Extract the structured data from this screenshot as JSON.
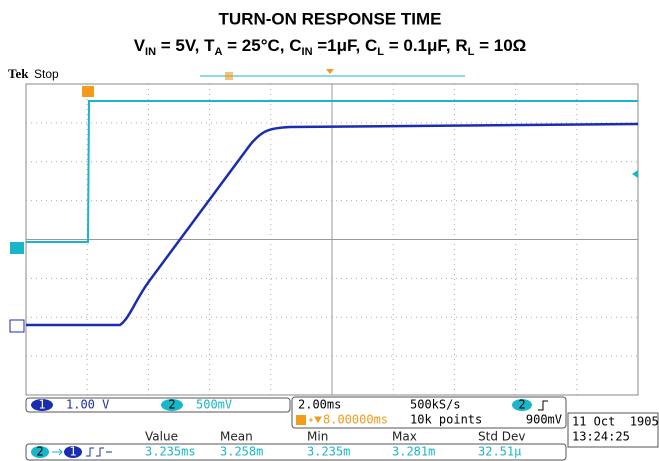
{
  "header": {
    "title": "TURN-ON RESPONSE TIME",
    "subtitle": [
      "V",
      "IN",
      " = 5V, T",
      "A",
      " = 25°C, C",
      "IN",
      " =1μF, C",
      "L",
      " = 0.1μF, R",
      "L",
      " = 10Ω"
    ]
  },
  "scope": {
    "brand": "Tek",
    "status": "Stop"
  },
  "channels": [
    {
      "id": "1",
      "scale": "1.00 V"
    },
    {
      "id": "2",
      "scale": "500mV"
    }
  ],
  "timebase": {
    "scale": "2.00ms",
    "rate": "500kS/s",
    "delay": "8.00000ms",
    "record": "10k points",
    "trigger_source": "2",
    "trigger_level": "900mV"
  },
  "datetime": {
    "date": "11 Oct  1905",
    "time": "13:24:25"
  },
  "measurement": {
    "from": "2",
    "to": "1",
    "headers": [
      "Value",
      "Mean",
      "Min",
      "Max",
      "Std Dev"
    ],
    "values": [
      "3.235ms",
      "3.258m",
      "3.235m",
      "3.281m",
      "32.51μ"
    ]
  }
}
